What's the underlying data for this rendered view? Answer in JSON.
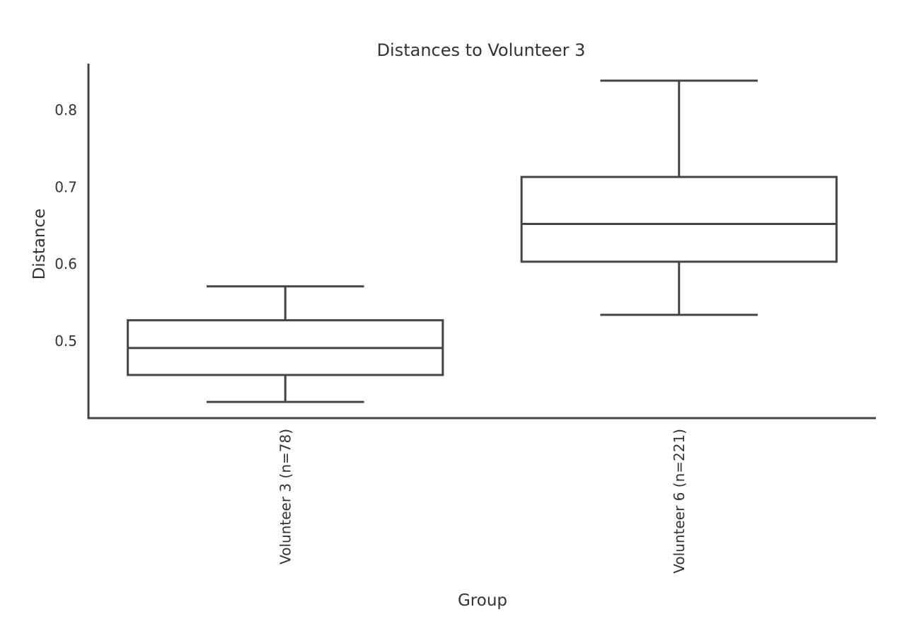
{
  "chart_data": {
    "type": "box",
    "title": "Distances to Volunteer 3",
    "xlabel": "Group",
    "ylabel": "Distance",
    "ylim": [
      0.4,
      0.86
    ],
    "yticks": [
      0.5,
      0.6,
      0.7,
      0.8
    ],
    "ytick_labels": [
      "0.5",
      "0.6",
      "0.7",
      "0.8"
    ],
    "grid": false,
    "categories": [
      "Volunteer 3 (n=78)",
      "Volunteer 6 (n=221)"
    ],
    "boxes": [
      {
        "category": "Volunteer 3 (n=78)",
        "whisker_low": 0.421,
        "q1": 0.456,
        "median": 0.491,
        "q3": 0.527,
        "whisker_high": 0.571
      },
      {
        "category": "Volunteer 6 (n=221)",
        "whisker_low": 0.534,
        "q1": 0.603,
        "median": 0.652,
        "q3": 0.713,
        "whisker_high": 0.838
      }
    ],
    "colors": {
      "line": "#444444",
      "box_fill": "#ffffff",
      "text": "#333333"
    }
  }
}
